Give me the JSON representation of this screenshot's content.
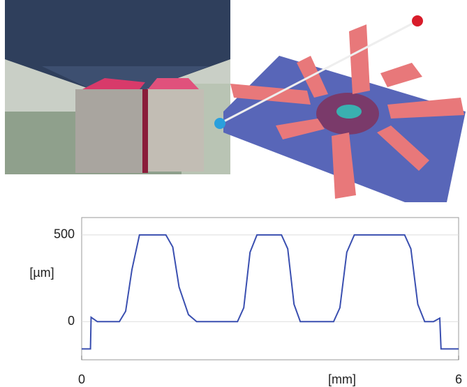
{
  "chart_data": {
    "type": "line",
    "y_label": "[µm]",
    "x_label": "[mm]",
    "x": [
      0,
      0.14,
      0.15,
      0.25,
      0.6,
      0.7,
      0.8,
      0.92,
      1.34,
      1.45,
      1.55,
      1.7,
      1.83,
      2.48,
      2.58,
      2.68,
      2.79,
      3.18,
      3.28,
      3.38,
      3.48,
      4.01,
      4.11,
      4.22,
      4.34,
      5.14,
      5.24,
      5.35,
      5.46,
      5.6,
      5.7,
      5.72,
      6
    ],
    "series": [
      {
        "color": "#3a4fb0",
        "values": [
          -157,
          -157,
          25,
          0,
          0,
          60,
          300,
          500,
          500,
          430,
          200,
          40,
          0,
          0,
          80,
          400,
          500,
          500,
          420,
          100,
          0,
          0,
          80,
          400,
          500,
          500,
          420,
          100,
          0,
          0,
          20,
          -157,
          -157
        ]
      }
    ],
    "xlim": [
      0,
      6
    ],
    "xticks": [
      0,
      6
    ],
    "ylim": [
      -220,
      600
    ],
    "yticks": [
      0,
      500
    ],
    "grid": true
  }
}
